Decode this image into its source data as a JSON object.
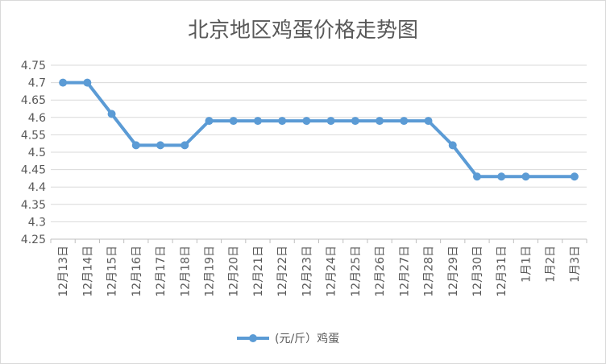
{
  "chart_data": {
    "type": "line",
    "title": "北京地区鸡蛋价格走势图",
    "categories": [
      "12月13日",
      "12月14日",
      "12月15日",
      "12月16日",
      "12月17日",
      "12月18日",
      "12月19日",
      "12月20日",
      "12月21日",
      "12月22日",
      "12月23日",
      "12月24日",
      "12月25日",
      "12月26日",
      "12月27日",
      "12月28日",
      "12月29日",
      "12月30日",
      "12月31日",
      "1月1日",
      "1月2日",
      "1月3日"
    ],
    "series": [
      {
        "name": "(元/斤）鸡蛋",
        "values": [
          4.7,
          4.7,
          4.61,
          4.52,
          4.52,
          4.52,
          4.59,
          4.59,
          4.59,
          4.59,
          4.59,
          4.59,
          4.59,
          4.59,
          4.59,
          4.59,
          4.52,
          4.43,
          4.43,
          4.43,
          null,
          4.43
        ],
        "color": "#5b9bd5"
      }
    ],
    "yticks": [
      "4.25",
      "4.3",
      "4.35",
      "4.4",
      "4.45",
      "4.5",
      "4.55",
      "4.6",
      "4.65",
      "4.7",
      "4.75"
    ],
    "ylim": [
      4.25,
      4.75
    ],
    "grid": true,
    "legend": "bottom"
  }
}
